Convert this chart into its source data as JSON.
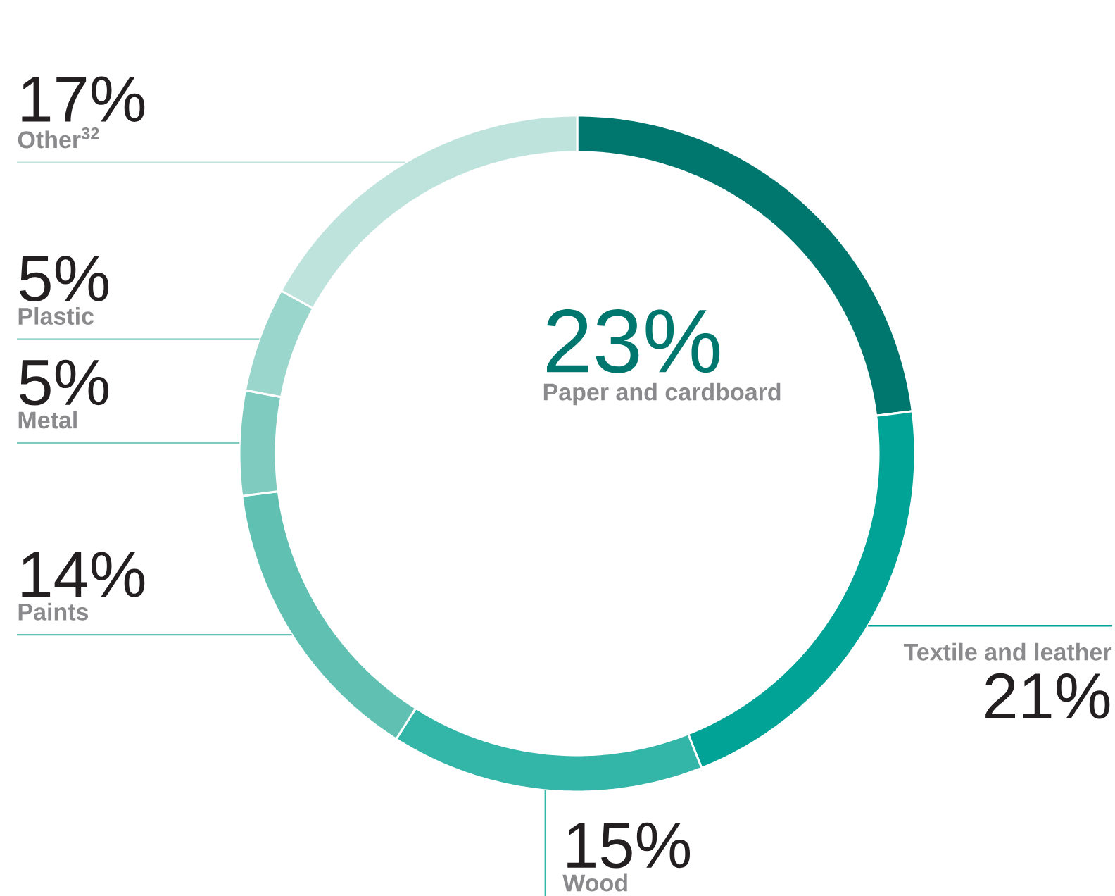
{
  "chart_data": {
    "type": "donut",
    "categories": [
      "Paper and cardboard",
      "Textile and leather",
      "Wood",
      "Paints",
      "Metal",
      "Plastic",
      "Other$^{32}$"
    ],
    "values": [
      23,
      21,
      15,
      14,
      5,
      5,
      17
    ],
    "value_labels": [
      "23%",
      "21%",
      "15%",
      "14%",
      "5%",
      "5%",
      "17%"
    ],
    "colors": [
      "#00776e",
      "#00a396",
      "#33b5a8",
      "#60c0b2",
      "#7fcbbf",
      "#9ad6cb",
      "#bde3dc"
    ],
    "legend": false
  }
}
